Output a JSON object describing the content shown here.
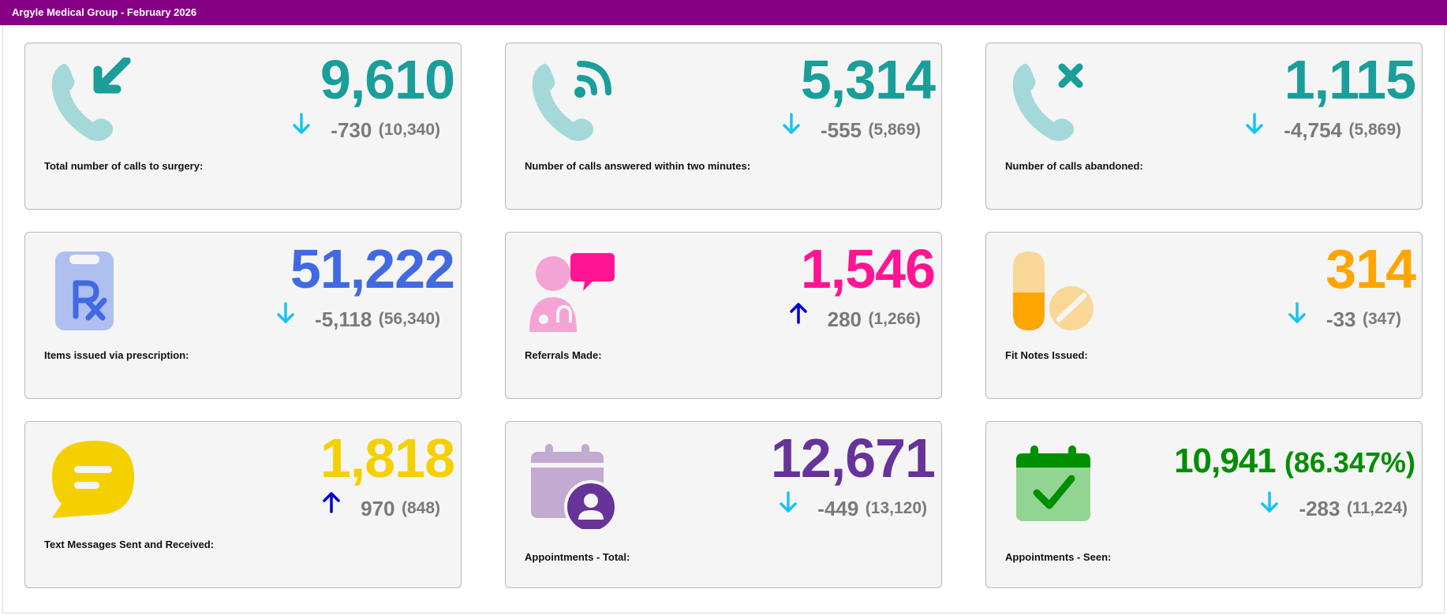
{
  "header": {
    "title": "Argyle Medical Group - February 2026"
  },
  "cards": [
    {
      "label": "Total number of calls to surgery:",
      "value": "9,610",
      "delta": "-730",
      "previous": "(10,340)",
      "direction": "down",
      "color": "#1a9e9a",
      "icon": "phone-incoming-icon"
    },
    {
      "label": "Number of calls answered within two minutes:",
      "value": "5,314",
      "delta": "-555",
      "previous": "(5,869)",
      "direction": "down",
      "color": "#1a9e9a",
      "icon": "phone-signal-icon"
    },
    {
      "label": "Number of calls abandoned:",
      "value": "1,115",
      "delta": "-4,754",
      "previous": "(5,869)",
      "direction": "down",
      "color": "#1a9e9a",
      "icon": "phone-missed-icon"
    },
    {
      "label": "Items issued via prescription:",
      "value": "51,222",
      "delta": "-5,118",
      "previous": "(56,340)",
      "direction": "down",
      "color": "#4169e1",
      "icon": "prescription-clipboard-icon"
    },
    {
      "label": "Referrals Made:",
      "value": "1,546",
      "delta": "280",
      "previous": "(1,266)",
      "direction": "up",
      "color": "#ff1493",
      "icon": "doctor-chat-icon"
    },
    {
      "label": "Fit Notes Issued:",
      "value": "314",
      "delta": "-33",
      "previous": "(347)",
      "direction": "down",
      "color": "#ffa500",
      "icon": "pills-icon"
    },
    {
      "label": "Text Messages Sent and Received:",
      "value": "1,818",
      "delta": "970",
      "previous": "(848)",
      "direction": "up",
      "color": "#f5d000",
      "icon": "chat-bubble-icon"
    },
    {
      "label": "Appointments - Total:",
      "value": "12,671",
      "delta": "-449",
      "previous": "(13,120)",
      "direction": "down",
      "color": "#663399",
      "icon": "calendar-person-icon"
    },
    {
      "label": "Appointments - Seen:",
      "value": "10,941",
      "percent": "(86.347%)",
      "delta": "-283",
      "previous": "(11,224)",
      "direction": "down",
      "color": "#008f00",
      "icon": "calendar-check-icon"
    }
  ],
  "colors": {
    "title_bar": "#850084",
    "arrow_down": "#19c3f0",
    "arrow_up": "#0000cc",
    "secondary_text": "#7a7a7a"
  }
}
